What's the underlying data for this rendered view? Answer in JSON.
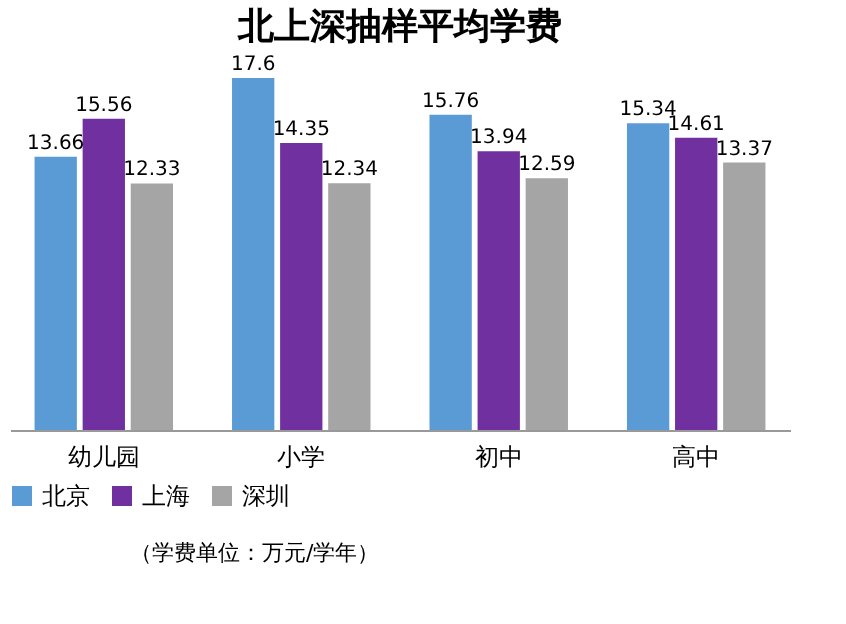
{
  "chart_data": {
    "type": "bar",
    "title": "北上深抽样平均学费",
    "categories": [
      "幼儿园",
      "小学",
      "初中",
      "高中"
    ],
    "series": [
      {
        "name": "北京",
        "color": "#5b9bd5",
        "values": [
          13.66,
          17.6,
          15.76,
          15.34
        ]
      },
      {
        "name": "上海",
        "color": "#7030a0",
        "values": [
          15.56,
          14.35,
          13.94,
          14.61
        ]
      },
      {
        "name": "深圳",
        "color": "#a5a5a5",
        "values": [
          12.33,
          12.34,
          12.59,
          13.37
        ]
      }
    ],
    "data_labels": true,
    "legend": "bottom",
    "grid": false,
    "tick_labels": "x",
    "annotations": [
      "（学费单位：万元/学年）"
    ]
  }
}
